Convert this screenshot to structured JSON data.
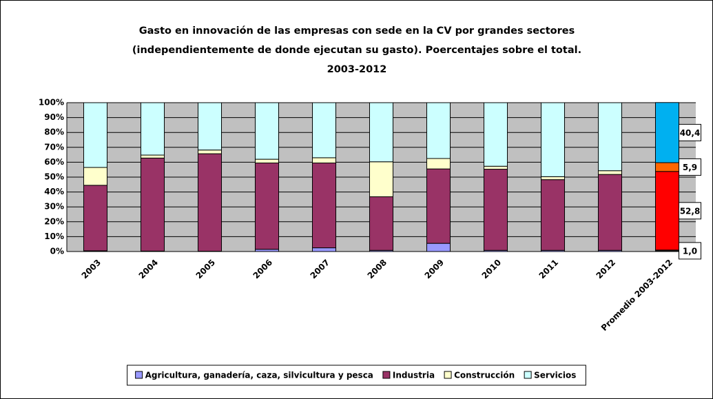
{
  "chart_data": {
    "type": "stacked_bar",
    "title": [
      "Gasto en innovación de las empresas con sede en la CV por grandes sectores",
      "(independientemente de donde ejecutan su gasto). Poercentajes sobre el total.",
      "2003-2012"
    ],
    "categories": [
      "2003",
      "2004",
      "2005",
      "2006",
      "2007",
      "2008",
      "2009",
      "2010",
      "2011",
      "2012",
      "Promedio 2003-2012"
    ],
    "series": [
      {
        "name": "Agricultura, ganadería, caza, silvicultura y pesca",
        "color": "#9999ff",
        "colors": [
          "#9999ff",
          "#9999ff",
          "#9999ff",
          "#9999ff",
          "#9999ff",
          "#9999ff",
          "#9999ff",
          "#9999ff",
          "#9999ff",
          "#9999ff",
          "#1a1a1a"
        ],
        "values": [
          0.5,
          0.3,
          0.2,
          1.5,
          2.5,
          0.8,
          5.5,
          0.8,
          0.8,
          0.8,
          1.0
        ],
        "value_labels": [
          null,
          null,
          null,
          null,
          null,
          null,
          null,
          null,
          null,
          null,
          "1,0"
        ]
      },
      {
        "name": "Industria",
        "color": "#993366",
        "colors": [
          "#993366",
          "#993366",
          "#993366",
          "#993366",
          "#993366",
          "#993366",
          "#993366",
          "#993366",
          "#993366",
          "#993366",
          "#ff0000"
        ],
        "values": [
          44,
          62.5,
          65.5,
          58,
          57,
          36,
          50,
          54.5,
          47.5,
          51,
          52.8
        ],
        "value_labels": [
          null,
          null,
          null,
          null,
          null,
          null,
          null,
          null,
          null,
          null,
          "52,8"
        ]
      },
      {
        "name": "Construcción",
        "color": "#ffffcc",
        "colors": [
          "#ffffcc",
          "#ffffcc",
          "#ffffcc",
          "#ffffcc",
          "#ffffcc",
          "#ffffcc",
          "#ffffcc",
          "#ffffcc",
          "#ffffcc",
          "#ffffcc",
          "#ff6600"
        ],
        "values": [
          12,
          2,
          2.5,
          2.5,
          3.5,
          23.5,
          7,
          2,
          2,
          2.5,
          5.9
        ],
        "value_labels": [
          null,
          null,
          null,
          null,
          null,
          null,
          null,
          null,
          null,
          null,
          "5,9"
        ]
      },
      {
        "name": "Servicios",
        "color": "#ccffff",
        "colors": [
          "#ccffff",
          "#ccffff",
          "#ccffff",
          "#ccffff",
          "#ccffff",
          "#ccffff",
          "#ccffff",
          "#ccffff",
          "#ccffff",
          "#ccffff",
          "#00b0f0"
        ],
        "values": [
          43.5,
          35.2,
          31.8,
          38,
          37,
          39.7,
          37.5,
          42.7,
          49.7,
          45.7,
          40.4
        ],
        "value_labels": [
          null,
          null,
          null,
          null,
          null,
          null,
          null,
          null,
          null,
          null,
          "40,4"
        ]
      }
    ],
    "ylim": [
      0,
      100
    ],
    "yticks": [
      {
        "value": 0,
        "label": "0%"
      },
      {
        "value": 10,
        "label": "10%"
      },
      {
        "value": 20,
        "label": "20%"
      },
      {
        "value": 30,
        "label": "30%"
      },
      {
        "value": 40,
        "label": "40%"
      },
      {
        "value": 50,
        "label": "50%"
      },
      {
        "value": 60,
        "label": "60%"
      },
      {
        "value": 70,
        "label": "70%"
      },
      {
        "value": 80,
        "label": "80%"
      },
      {
        "value": 90,
        "label": "90%"
      },
      {
        "value": 100,
        "label": "100%"
      }
    ],
    "grid": true,
    "legend": "bottom"
  }
}
